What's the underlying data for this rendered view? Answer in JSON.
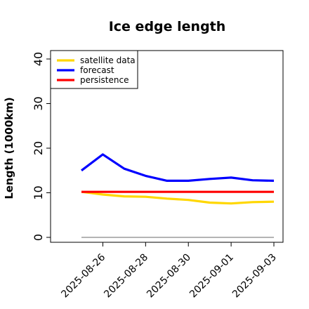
{
  "chart_data": {
    "type": "line",
    "title": "Ice edge length",
    "xlabel": "",
    "ylabel": "Length (1000km)",
    "x": [
      "2025-08-25",
      "2025-08-26",
      "2025-08-27",
      "2025-08-28",
      "2025-08-29",
      "2025-08-30",
      "2025-08-31",
      "2025-09-01",
      "2025-09-02",
      "2025-09-03"
    ],
    "xticks": [
      "2025-08-26",
      "2025-08-28",
      "2025-08-30",
      "2025-09-01",
      "2025-09-03"
    ],
    "highlight_tick": "2025-08-26",
    "highlight_color": "#228B22",
    "ylim": [
      -1,
      42
    ],
    "yticks": [
      0,
      10,
      20,
      30,
      40
    ],
    "grid": false,
    "legend_position": "top-left",
    "baseline": {
      "value": 0,
      "color": "#888888"
    },
    "series": [
      {
        "name": "satellite data",
        "color": "#FFD700",
        "values": [
          10.2,
          9.6,
          9.2,
          9.1,
          8.7,
          8.4,
          7.8,
          7.6,
          7.9,
          8.0
        ]
      },
      {
        "name": "forecast",
        "color": "#0000FF",
        "values": [
          15.0,
          18.6,
          15.4,
          13.8,
          12.7,
          12.7,
          13.1,
          13.4,
          12.8,
          12.7
        ]
      },
      {
        "name": "persistence",
        "color": "#FF0000",
        "values": [
          10.2,
          10.2,
          10.2,
          10.2,
          10.2,
          10.2,
          10.2,
          10.2,
          10.2,
          10.2
        ]
      }
    ]
  }
}
